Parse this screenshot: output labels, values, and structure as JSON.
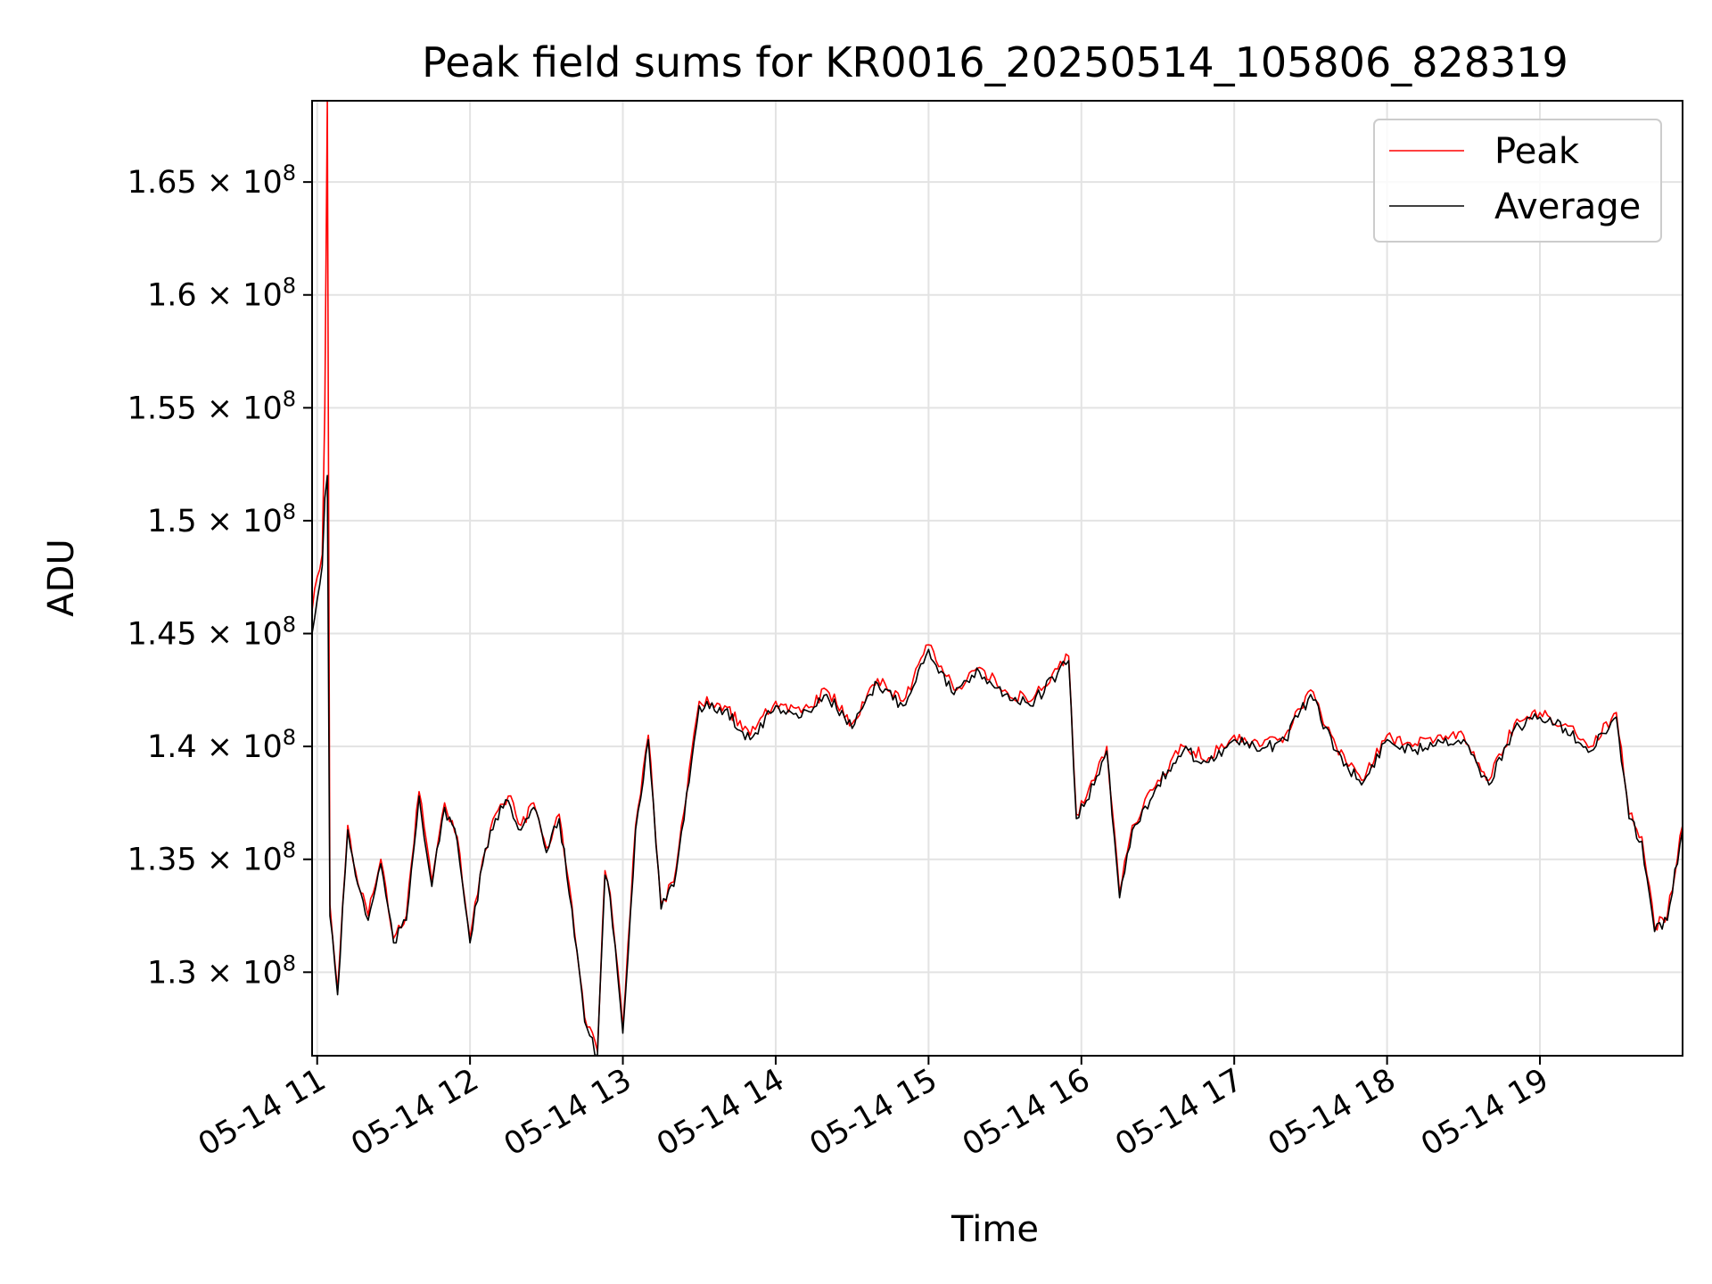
{
  "chart_data": {
    "type": "line",
    "title": "Peak field sums for KR0016_20250514_105806_828319",
    "xlabel": "Time",
    "ylabel": "ADU",
    "x_range": [
      "05-14 10:58",
      "05-14 19:56"
    ],
    "ylim": [
      126300000,
      168600000
    ],
    "x_ticks": [
      "05-14 11",
      "05-14 12",
      "05-14 13",
      "05-14 14",
      "05-14 15",
      "05-14 16",
      "05-14 17",
      "05-14 18",
      "05-14 19"
    ],
    "y_ticks": [
      {
        "value": 130000000,
        "mantissa": "1.3"
      },
      {
        "value": 135000000,
        "mantissa": "1.35"
      },
      {
        "value": 140000000,
        "mantissa": "1.4"
      },
      {
        "value": 145000000,
        "mantissa": "1.45"
      },
      {
        "value": 150000000,
        "mantissa": "1.5"
      },
      {
        "value": 155000000,
        "mantissa": "1.55"
      },
      {
        "value": 160000000,
        "mantissa": "1.6"
      },
      {
        "value": 165000000,
        "mantissa": "1.65"
      }
    ],
    "y_tick_exponent": "8",
    "grid": true,
    "legend_position": "top-right",
    "series": [
      {
        "name": "Peak",
        "color": "#ff0000",
        "x": [
          "05-14 10:58",
          "05-14 11:00",
          "05-14 11:02",
          "05-14 11:03",
          "05-14 11:04",
          "05-14 11:05",
          "05-14 11:08",
          "05-14 11:12",
          "05-14 11:15",
          "05-14 11:20",
          "05-14 11:25",
          "05-14 11:30",
          "05-14 11:35",
          "05-14 11:40",
          "05-14 11:45",
          "05-14 11:50",
          "05-14 11:55",
          "05-14 12:00",
          "05-14 12:05",
          "05-14 12:10",
          "05-14 12:15",
          "05-14 12:20",
          "05-14 12:25",
          "05-14 12:30",
          "05-14 12:35",
          "05-14 12:40",
          "05-14 12:45",
          "05-14 12:50",
          "05-14 12:53",
          "05-14 12:55",
          "05-14 13:00",
          "05-14 13:05",
          "05-14 13:10",
          "05-14 13:15",
          "05-14 13:20",
          "05-14 13:30",
          "05-14 13:40",
          "05-14 13:50",
          "05-14 14:00",
          "05-14 14:10",
          "05-14 14:20",
          "05-14 14:30",
          "05-14 14:40",
          "05-14 14:50",
          "05-14 15:00",
          "05-14 15:10",
          "05-14 15:20",
          "05-14 15:30",
          "05-14 15:40",
          "05-14 15:55",
          "05-14 15:58",
          "05-14 16:05",
          "05-14 16:10",
          "05-14 16:15",
          "05-14 16:20",
          "05-14 16:30",
          "05-14 16:40",
          "05-14 16:50",
          "05-14 17:00",
          "05-14 17:10",
          "05-14 17:20",
          "05-14 17:30",
          "05-14 17:40",
          "05-14 17:50",
          "05-14 18:00",
          "05-14 18:10",
          "05-14 18:20",
          "05-14 18:30",
          "05-14 18:40",
          "05-14 18:50",
          "05-14 19:00",
          "05-14 19:10",
          "05-14 19:20",
          "05-14 19:30",
          "05-14 19:35",
          "05-14 19:40",
          "05-14 19:45",
          "05-14 19:50",
          "05-14 19:56"
        ],
        "y": [
          146000000,
          147500000,
          148500000,
          155000000,
          168600000,
          133000000,
          129200000,
          136500000,
          134500000,
          132500000,
          135000000,
          131500000,
          132500000,
          138000000,
          134000000,
          137500000,
          136000000,
          131500000,
          135000000,
          137000000,
          137800000,
          136500000,
          137500000,
          135500000,
          137000000,
          133000000,
          128000000,
          126500000,
          134500000,
          133500000,
          127500000,
          136500000,
          140500000,
          133000000,
          134000000,
          142000000,
          141800000,
          140500000,
          142000000,
          141500000,
          142500000,
          141000000,
          143000000,
          142000000,
          144500000,
          142500000,
          143500000,
          142500000,
          142000000,
          144000000,
          137000000,
          138500000,
          140000000,
          133500000,
          136500000,
          138500000,
          140000000,
          139500000,
          140500000,
          140000000,
          140500000,
          142500000,
          140000000,
          138500000,
          140500000,
          140000000,
          140500000,
          140500000,
          138500000,
          141000000,
          141500000,
          141000000,
          140000000,
          141500000,
          137000000,
          136000000,
          132000000,
          132500000,
          136500000
        ]
      },
      {
        "name": "Average",
        "color": "#000000",
        "x": [
          "05-14 10:58",
          "05-14 11:00",
          "05-14 11:02",
          "05-14 11:03",
          "05-14 11:04",
          "05-14 11:05",
          "05-14 11:08",
          "05-14 11:12",
          "05-14 11:15",
          "05-14 11:20",
          "05-14 11:25",
          "05-14 11:30",
          "05-14 11:35",
          "05-14 11:40",
          "05-14 11:45",
          "05-14 11:50",
          "05-14 11:55",
          "05-14 12:00",
          "05-14 12:05",
          "05-14 12:10",
          "05-14 12:15",
          "05-14 12:20",
          "05-14 12:25",
          "05-14 12:30",
          "05-14 12:35",
          "05-14 12:40",
          "05-14 12:45",
          "05-14 12:50",
          "05-14 12:53",
          "05-14 12:55",
          "05-14 13:00",
          "05-14 13:05",
          "05-14 13:10",
          "05-14 13:15",
          "05-14 13:20",
          "05-14 13:30",
          "05-14 13:40",
          "05-14 13:50",
          "05-14 14:00",
          "05-14 14:10",
          "05-14 14:20",
          "05-14 14:30",
          "05-14 14:40",
          "05-14 14:50",
          "05-14 15:00",
          "05-14 15:10",
          "05-14 15:20",
          "05-14 15:30",
          "05-14 15:40",
          "05-14 15:55",
          "05-14 15:58",
          "05-14 16:05",
          "05-14 16:10",
          "05-14 16:15",
          "05-14 16:20",
          "05-14 16:30",
          "05-14 16:40",
          "05-14 16:50",
          "05-14 17:00",
          "05-14 17:10",
          "05-14 17:20",
          "05-14 17:30",
          "05-14 17:40",
          "05-14 17:50",
          "05-14 18:00",
          "05-14 18:10",
          "05-14 18:20",
          "05-14 18:30",
          "05-14 18:40",
          "05-14 18:50",
          "05-14 19:00",
          "05-14 19:10",
          "05-14 19:20",
          "05-14 19:30",
          "05-14 19:35",
          "05-14 19:40",
          "05-14 19:45",
          "05-14 19:50",
          "05-14 19:56"
        ],
        "y": [
          145000000,
          146500000,
          148000000,
          151000000,
          152000000,
          132500000,
          129000000,
          136300000,
          134300000,
          132300000,
          134800000,
          131300000,
          132300000,
          137800000,
          133800000,
          137300000,
          135800000,
          131300000,
          134800000,
          136800000,
          137600000,
          136300000,
          137300000,
          135300000,
          136800000,
          132800000,
          127800000,
          126300000,
          134300000,
          133300000,
          127300000,
          136300000,
          140300000,
          132800000,
          133800000,
          141800000,
          141600000,
          140300000,
          141800000,
          141300000,
          142300000,
          140800000,
          142800000,
          141800000,
          144300000,
          142300000,
          143300000,
          142300000,
          141800000,
          143800000,
          136800000,
          138300000,
          139800000,
          133300000,
          136300000,
          138300000,
          139800000,
          139300000,
          140300000,
          139800000,
          140300000,
          142300000,
          139800000,
          138300000,
          140300000,
          139800000,
          140300000,
          140300000,
          138300000,
          140800000,
          141300000,
          140800000,
          139800000,
          141300000,
          136800000,
          135800000,
          131800000,
          132300000,
          136300000
        ]
      }
    ]
  }
}
